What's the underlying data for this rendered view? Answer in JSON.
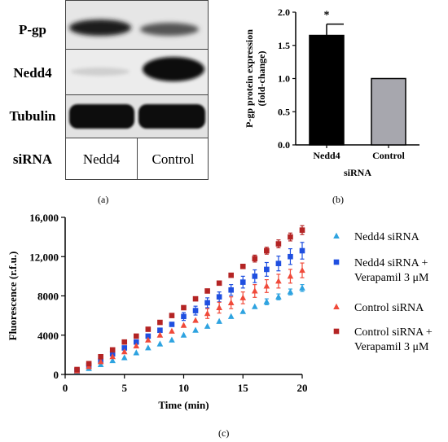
{
  "panels": {
    "a": "(a)",
    "b": "(b)",
    "c": "(c)"
  },
  "blot": {
    "rows": [
      "P-gp",
      "Nedd4",
      "Tubulin",
      "siRNA"
    ],
    "lanes": [
      "Nedd4",
      "Control"
    ]
  },
  "chart_data": [
    {
      "type": "bar",
      "categories": [
        "Nedd4",
        "Control"
      ],
      "values": [
        1.65,
        1.0
      ],
      "errors": [
        0.17,
        0
      ],
      "colors": [
        "#000000",
        "#a7a7ae"
      ],
      "annotations": [
        {
          "category": "Nedd4",
          "text": "*"
        }
      ],
      "xlabel": "siRNA",
      "ylabel_lines": [
        "P-gp protein expression",
        "(fold-change)"
      ],
      "ylim": [
        0,
        2.0
      ],
      "yticks": [
        "0.0",
        "0.5",
        "1.0",
        "1.5",
        "2.0"
      ],
      "grid": false
    },
    {
      "type": "scatter",
      "x": [
        1,
        2,
        3,
        4,
        5,
        6,
        7,
        8,
        9,
        10,
        11,
        12,
        13,
        14,
        15,
        16,
        17,
        18,
        19,
        20
      ],
      "xlabel": "Time (min)",
      "ylabel": "Fluorescence (r.f.u.)",
      "xlim": [
        0,
        20
      ],
      "ylim": [
        0,
        16000
      ],
      "xticks": [
        "0",
        "5",
        "10",
        "15",
        "20"
      ],
      "yticks": [
        "0",
        "4000",
        "8000",
        "12,000",
        "16,000"
      ],
      "grid": false,
      "legend_position": "right",
      "series": [
        {
          "name": "Nedd4 siRNA",
          "marker": "triangle",
          "color": "#2ea3e0",
          "values": [
            300,
            600,
            1000,
            1400,
            1700,
            2200,
            2700,
            3100,
            3500,
            4000,
            4500,
            4900,
            5400,
            5900,
            6400,
            6900,
            7400,
            7900,
            8400,
            8800
          ],
          "errors": [
            0,
            0,
            0,
            0,
            0,
            0,
            0,
            0,
            0,
            0,
            0,
            0,
            0,
            0,
            0,
            0,
            300,
            300,
            300,
            350
          ]
        },
        {
          "name_lines": [
            "Nedd4 siRNA +",
            "Verapamil 3 μM"
          ],
          "marker": "square",
          "color": "#1f4fe0",
          "values": [
            400,
            900,
            1400,
            2100,
            2700,
            3300,
            3900,
            4500,
            5100,
            5900,
            6500,
            7300,
            7900,
            8600,
            9400,
            10000,
            10700,
            11300,
            12000,
            12600
          ],
          "errors": [
            0,
            0,
            0,
            0,
            0,
            0,
            0,
            0,
            0,
            400,
            450,
            500,
            500,
            550,
            600,
            650,
            700,
            750,
            800,
            850
          ]
        },
        {
          "name": "Control siRNA",
          "marker": "triangle",
          "color": "#f04a3a",
          "values": [
            350,
            800,
            1300,
            1800,
            2300,
            2900,
            3500,
            4000,
            4400,
            5000,
            5500,
            6200,
            6800,
            7300,
            7800,
            8500,
            9000,
            9500,
            10000,
            10600
          ],
          "errors": [
            0,
            0,
            0,
            0,
            0,
            0,
            0,
            0,
            0,
            0,
            0,
            500,
            550,
            600,
            600,
            650,
            650,
            700,
            700,
            750
          ]
        },
        {
          "name_lines": [
            "Control siRNA +",
            "Verapamil 3 μM"
          ],
          "marker": "square",
          "color": "#b42424",
          "values": [
            500,
            1100,
            1800,
            2500,
            3300,
            3900,
            4600,
            5300,
            6000,
            6800,
            7700,
            8500,
            9300,
            10100,
            11000,
            11800,
            12600,
            13300,
            14000,
            14700
          ],
          "errors": [
            0,
            0,
            0,
            0,
            0,
            0,
            0,
            0,
            0,
            0,
            0,
            0,
            0,
            0,
            0,
            350,
            350,
            400,
            400,
            450
          ]
        }
      ]
    }
  ]
}
